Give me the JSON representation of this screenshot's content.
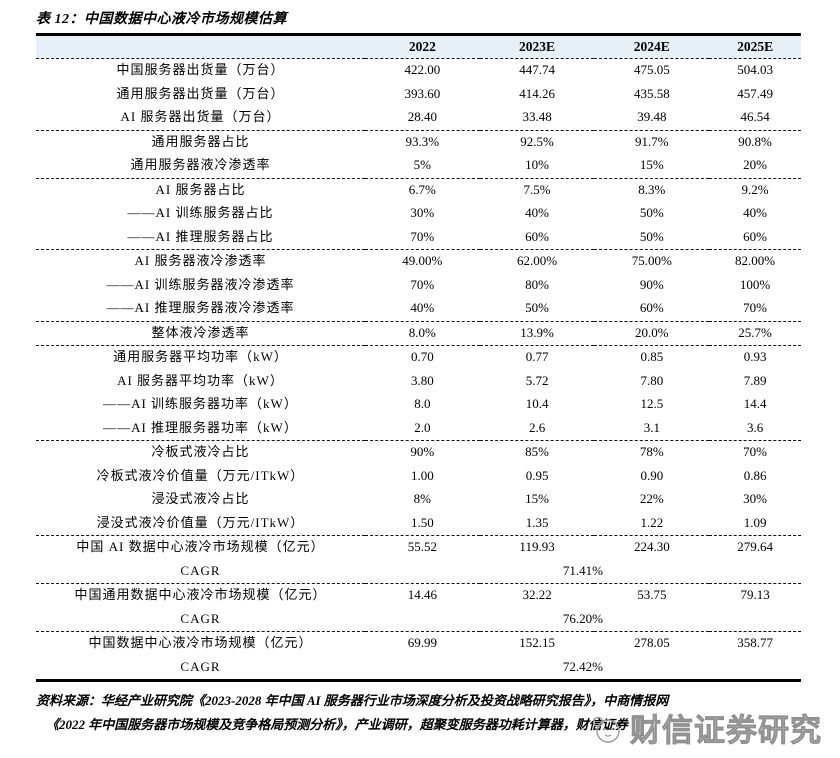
{
  "title": "表 12：中国数据中心液冷市场规模估算",
  "colors": {
    "header_bg": "#e7eff7",
    "text": "#000000",
    "watermark": "#8f8f8f"
  },
  "table": {
    "type": "table",
    "columns": [
      "",
      "2022",
      "2023E",
      "2024E",
      "2025E"
    ],
    "sections": [
      {
        "rows": [
          {
            "label": "中国服务器出货量（万台）",
            "values": [
              "422.00",
              "447.74",
              "475.05",
              "504.03"
            ]
          },
          {
            "label": "通用服务器出货量（万台）",
            "values": [
              "393.60",
              "414.26",
              "435.58",
              "457.49"
            ]
          },
          {
            "label": "AI 服务器出货量（万台）",
            "values": [
              "28.40",
              "33.48",
              "39.48",
              "46.54"
            ]
          }
        ]
      },
      {
        "rows": [
          {
            "label": "通用服务器占比",
            "values": [
              "93.3%",
              "92.5%",
              "91.7%",
              "90.8%"
            ]
          },
          {
            "label": "通用服务器液冷渗透率",
            "values": [
              "5%",
              "10%",
              "15%",
              "20%"
            ]
          }
        ]
      },
      {
        "rows": [
          {
            "label": "AI 服务器占比",
            "values": [
              "6.7%",
              "7.5%",
              "8.3%",
              "9.2%"
            ]
          },
          {
            "label": "——AI 训练服务器占比",
            "values": [
              "30%",
              "40%",
              "50%",
              "40%"
            ]
          },
          {
            "label": "——AI 推理服务器占比",
            "values": [
              "70%",
              "60%",
              "50%",
              "60%"
            ]
          }
        ]
      },
      {
        "rows": [
          {
            "label": "AI 服务器液冷渗透率",
            "values": [
              "49.00%",
              "62.00%",
              "75.00%",
              "82.00%"
            ]
          },
          {
            "label": "——AI 训练服务器液冷渗透率",
            "values": [
              "70%",
              "80%",
              "90%",
              "100%"
            ]
          },
          {
            "label": "——AI 推理服务器液冷渗透率",
            "values": [
              "40%",
              "50%",
              "60%",
              "70%"
            ]
          }
        ]
      },
      {
        "rows": [
          {
            "label": "整体液冷渗透率",
            "values": [
              "8.0%",
              "13.9%",
              "20.0%",
              "25.7%"
            ]
          }
        ]
      },
      {
        "rows": [
          {
            "label": "通用服务器平均功率（kW）",
            "values": [
              "0.70",
              "0.77",
              "0.85",
              "0.93"
            ]
          },
          {
            "label": "AI 服务器平均功率（kW）",
            "values": [
              "3.80",
              "5.72",
              "7.80",
              "7.89"
            ]
          },
          {
            "label": "——AI 训练服务器功率（kW）",
            "values": [
              "8.0",
              "10.4",
              "12.5",
              "14.4"
            ]
          },
          {
            "label": "——AI 推理服务器功率（kW）",
            "values": [
              "2.0",
              "2.6",
              "3.1",
              "3.6"
            ]
          }
        ]
      },
      {
        "rows": [
          {
            "label": "冷板式液冷占比",
            "values": [
              "90%",
              "85%",
              "78%",
              "70%"
            ]
          },
          {
            "label": "冷板式液冷价值量（万元/ITkW）",
            "values": [
              "1.00",
              "0.95",
              "0.90",
              "0.86"
            ]
          },
          {
            "label": "浸没式液冷占比",
            "values": [
              "8%",
              "15%",
              "22%",
              "30%"
            ]
          },
          {
            "label": "浸没式液冷价值量（万元/ITkW）",
            "values": [
              "1.50",
              "1.35",
              "1.22",
              "1.09"
            ]
          }
        ]
      },
      {
        "rows": [
          {
            "label": "中国 AI 数据中心液冷市场规模（亿元）",
            "values": [
              "55.52",
              "119.93",
              "224.30",
              "279.64"
            ]
          },
          {
            "label": "CAGR",
            "span_value": "71.41%"
          }
        ]
      },
      {
        "rows": [
          {
            "label": "中国通用数据中心液冷市场规模（亿元）",
            "values": [
              "14.46",
              "32.22",
              "53.75",
              "79.13"
            ]
          },
          {
            "label": "CAGR",
            "span_value": "76.20%"
          }
        ]
      },
      {
        "rows": [
          {
            "label": "中国数据中心液冷市场规模（亿元）",
            "values": [
              "69.99",
              "152.15",
              "278.05",
              "358.77"
            ]
          },
          {
            "label": "CAGR",
            "span_value": "72.42%"
          }
        ]
      }
    ]
  },
  "source": {
    "line1": "资料来源：华经产业研究院《2023-2028 年中国 AI 服务器行业市场深度分析及投资战略研究报告》，中商情报网",
    "line2": "《2022 年中国服务器市场规模及竞争格局预测分析》，产业调研，超聚变服务器功耗计算器，财信证券"
  },
  "watermark": {
    "text": "财信证券研究"
  }
}
